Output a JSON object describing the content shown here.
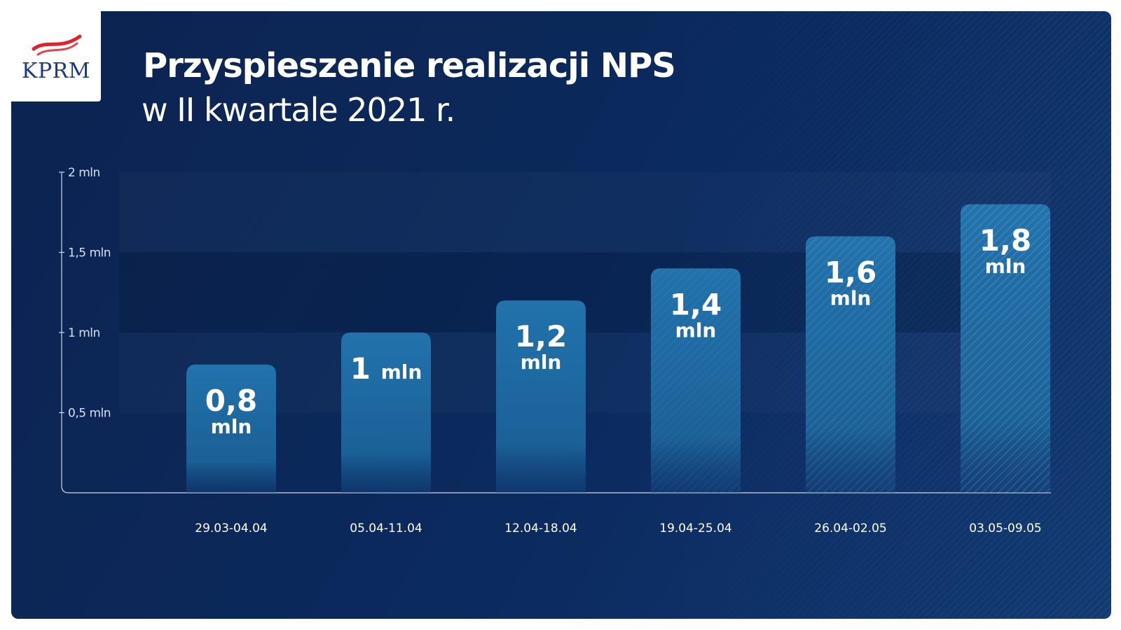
{
  "logo": {
    "text": "KPRM"
  },
  "colors": {
    "background": "#0b2a5e",
    "bar": "#1f6ea8",
    "text": "#ffffff",
    "logo_text": "#1a3a86",
    "logo_flag": "#e0222c"
  },
  "chart_data": {
    "type": "bar",
    "title": "Przyspieszenie realizacji NPS",
    "subtitle": "w II kwartale 2021 r.",
    "categories": [
      "29.03-04.04",
      "05.04-11.04",
      "12.04-18.04",
      "19.04-25.04",
      "26.04-02.05",
      "03.05-09.05"
    ],
    "values": [
      0.8,
      1.0,
      1.2,
      1.4,
      1.6,
      1.8
    ],
    "value_labels": [
      {
        "num": "0,8",
        "unit": "mln",
        "inline": false
      },
      {
        "num": "1",
        "unit": "mln",
        "inline": true
      },
      {
        "num": "1,2",
        "unit": "mln",
        "inline": false
      },
      {
        "num": "1,4",
        "unit": "mln",
        "inline": false
      },
      {
        "num": "1,6",
        "unit": "mln",
        "inline": false
      },
      {
        "num": "1,8",
        "unit": "mln",
        "inline": false
      }
    ],
    "y_ticks": [
      {
        "value": 0.5,
        "label": "0,5 mln"
      },
      {
        "value": 1.0,
        "label": "1 mln"
      },
      {
        "value": 1.5,
        "label": "1,5 mln"
      },
      {
        "value": 2.0,
        "label": "2 mln"
      }
    ],
    "ylim": [
      0,
      2
    ],
    "xlabel": "",
    "ylabel": "",
    "grid": false,
    "legend": "none"
  }
}
